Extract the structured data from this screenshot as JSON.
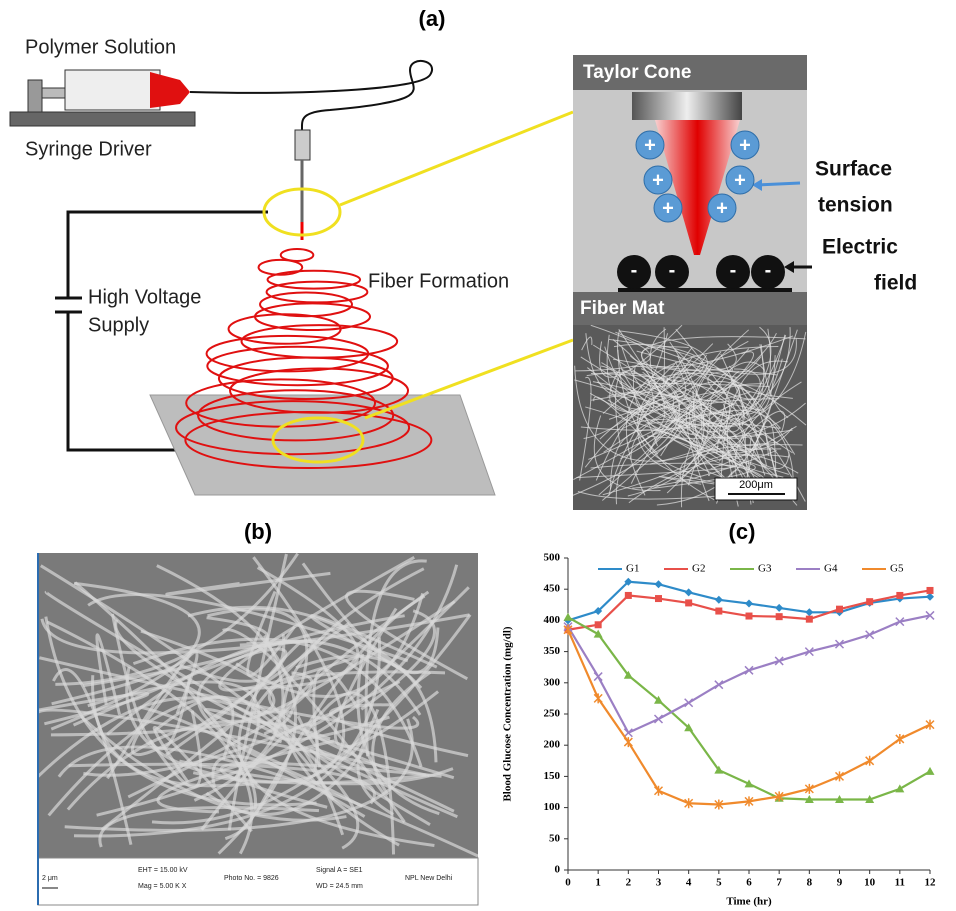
{
  "panel_labels": [
    "(a)",
    "(b)",
    "(c)"
  ],
  "diagram": {
    "polymer_solution": "Polymer Solution",
    "syringe_driver": "Syringe Driver",
    "high_voltage_supply": [
      "High Voltage",
      "Supply"
    ],
    "fiber_formation": "Fiber Formation",
    "taylor_cone": "Taylor Cone",
    "fiber_mat": "Fiber Mat",
    "surface_tension": [
      "Surface",
      "tension"
    ],
    "electric_field": [
      "Electric",
      "field"
    ],
    "positive_charge": "+",
    "negative_charge": "-",
    "scale_bar": "200μm"
  },
  "sem_footer": {
    "scale": "2 μm",
    "eht": "EHT = 15.00 kV",
    "mag": "Mag =  5.00 K X",
    "photo": "Photo No. = 9826",
    "signal": "Signal A = SE1",
    "wd": "WD = 24.5 mm",
    "lab": "NPL New Delhi"
  },
  "chart_data": {
    "type": "line",
    "x_label": "Time (hr)",
    "y_label": "Blood Glucose Concentration  (mg/dl)",
    "x": [
      0,
      1,
      2,
      3,
      4,
      5,
      6,
      7,
      8,
      9,
      10,
      11,
      12
    ],
    "series": [
      {
        "name": "G1",
        "color": "#2e8bc9",
        "values": [
          400,
          415,
          462,
          458,
          445,
          433,
          427,
          420,
          413,
          413,
          428,
          435,
          438
        ]
      },
      {
        "name": "G2",
        "color": "#e8504a",
        "values": [
          385,
          393,
          440,
          435,
          428,
          415,
          407,
          406,
          402,
          418,
          430,
          440,
          448
        ]
      },
      {
        "name": "G3",
        "color": "#7ab648",
        "values": [
          405,
          378,
          312,
          272,
          228,
          160,
          138,
          115,
          113,
          113,
          113,
          130,
          158
        ]
      },
      {
        "name": "G4",
        "color": "#9b7fc4",
        "values": [
          390,
          310,
          220,
          242,
          268,
          297,
          320,
          335,
          350,
          362,
          377,
          398,
          408
        ]
      },
      {
        "name": "G5",
        "color": "#f08a2c",
        "values": [
          385,
          275,
          205,
          127,
          107,
          105,
          110,
          118,
          130,
          150,
          175,
          210,
          233
        ]
      }
    ],
    "xlim": [
      0,
      12
    ],
    "xticks": [
      0,
      1,
      2,
      3,
      4,
      5,
      6,
      7,
      8,
      9,
      10,
      11,
      12
    ],
    "ylim": [
      0,
      500
    ],
    "yticks": [
      0,
      50,
      100,
      150,
      200,
      250,
      300,
      350,
      400,
      450,
      500
    ],
    "grid": false,
    "legend": "top"
  }
}
